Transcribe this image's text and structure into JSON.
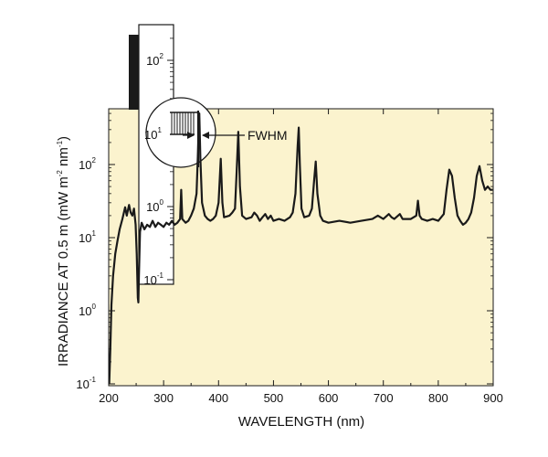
{
  "colors": {
    "plot_background": "#FBF3CE",
    "line": "#1a1a1a",
    "bar": "#1a1a1a"
  },
  "chart_data": {
    "type": "line",
    "xlabel": "WAVELENGTH (nm)",
    "ylabel_main": "IRRADIANCE AT 0.5 m (mW m",
    "ylabel_exp1": "-2",
    "ylabel_mid": " nm",
    "ylabel_exp2": "-1",
    "ylabel_end": ")",
    "xlim": [
      200,
      900
    ],
    "xticks": [
      "200",
      "300",
      "400",
      "500",
      "600",
      "700",
      "800",
      "900"
    ],
    "yscale": "log",
    "ylim": [
      0.1,
      500
    ],
    "yticks": [
      {
        "mant": "10",
        "exp": "-1",
        "value": 0.1
      },
      {
        "mant": "10",
        "exp": "0",
        "value": 1
      },
      {
        "mant": "10",
        "exp": "1",
        "value": 10
      },
      {
        "mant": "10",
        "exp": "2",
        "value": 100
      }
    ],
    "series": [
      {
        "values": [
          [
            201,
            0.1
          ],
          [
            203,
            0.3
          ],
          [
            205,
            1.2
          ],
          [
            208,
            3.0
          ],
          [
            212,
            6.0
          ],
          [
            216,
            9.0
          ],
          [
            220,
            13.0
          ],
          [
            225,
            18.0
          ],
          [
            230,
            26.0
          ],
          [
            233,
            20.0
          ],
          [
            237,
            28.0
          ],
          [
            240,
            22.0
          ],
          [
            243,
            20.0
          ],
          [
            246,
            25.0
          ],
          [
            249,
            15.0
          ],
          [
            251,
            6.0
          ],
          [
            253,
            1.5
          ],
          [
            254,
            1.3
          ],
          [
            255,
            3.0
          ],
          [
            257,
            12.0
          ],
          [
            260,
            16.0
          ],
          [
            265,
            13.0
          ],
          [
            270,
            15.0
          ],
          [
            275,
            14.0
          ],
          [
            280,
            17.0
          ],
          [
            285,
            14.0
          ],
          [
            290,
            16.0
          ],
          [
            295,
            15.0
          ],
          [
            300,
            14.0
          ],
          [
            305,
            16.0
          ],
          [
            310,
            15.0
          ],
          [
            315,
            17.0
          ],
          [
            320,
            15.0
          ],
          [
            325,
            16.0
          ],
          [
            330,
            18.0
          ],
          [
            332,
            45.0
          ],
          [
            334,
            18.0
          ],
          [
            340,
            16.0
          ],
          [
            345,
            17.0
          ],
          [
            350,
            20.0
          ],
          [
            355,
            25.0
          ],
          [
            360,
            40.0
          ],
          [
            363,
            180.0
          ],
          [
            365,
            500.0
          ],
          [
            367,
            120.0
          ],
          [
            370,
            30.0
          ],
          [
            375,
            20.0
          ],
          [
            380,
            18.0
          ],
          [
            385,
            17.0
          ],
          [
            390,
            18.0
          ],
          [
            395,
            20.0
          ],
          [
            400,
            30.0
          ],
          [
            404,
            120.0
          ],
          [
            407,
            30.0
          ],
          [
            410,
            19.0
          ],
          [
            420,
            20.0
          ],
          [
            425,
            22.0
          ],
          [
            430,
            25.0
          ],
          [
            433,
            80.0
          ],
          [
            436,
            280.0
          ],
          [
            439,
            50.0
          ],
          [
            443,
            20.0
          ],
          [
            450,
            18.0
          ],
          [
            460,
            19.0
          ],
          [
            465,
            22.0
          ],
          [
            470,
            20.0
          ],
          [
            475,
            17.0
          ],
          [
            480,
            19.0
          ],
          [
            485,
            21.0
          ],
          [
            490,
            18.0
          ],
          [
            495,
            20.0
          ],
          [
            500,
            17.0
          ],
          [
            510,
            18.0
          ],
          [
            520,
            17.0
          ],
          [
            530,
            19.0
          ],
          [
            535,
            22.0
          ],
          [
            540,
            40.0
          ],
          [
            544,
            180.0
          ],
          [
            546,
            320.0
          ],
          [
            548,
            100.0
          ],
          [
            551,
            25.0
          ],
          [
            556,
            19.0
          ],
          [
            565,
            20.0
          ],
          [
            570,
            25.0
          ],
          [
            574,
            60.0
          ],
          [
            577,
            110.0
          ],
          [
            580,
            40.0
          ],
          [
            585,
            20.0
          ],
          [
            590,
            17.0
          ],
          [
            600,
            16.0
          ],
          [
            620,
            17.0
          ],
          [
            640,
            16.0
          ],
          [
            660,
            17.0
          ],
          [
            680,
            18.0
          ],
          [
            690,
            20.0
          ],
          [
            700,
            18.0
          ],
          [
            710,
            21.0
          ],
          [
            715,
            19.0
          ],
          [
            720,
            18.0
          ],
          [
            730,
            21.0
          ],
          [
            735,
            18.0
          ],
          [
            750,
            18.0
          ],
          [
            760,
            20.0
          ],
          [
            763,
            32.0
          ],
          [
            766,
            20.0
          ],
          [
            770,
            18.0
          ],
          [
            780,
            17.0
          ],
          [
            790,
            18.0
          ],
          [
            800,
            17.0
          ],
          [
            810,
            21.0
          ],
          [
            815,
            45.0
          ],
          [
            820,
            85.0
          ],
          [
            825,
            70.0
          ],
          [
            830,
            35.0
          ],
          [
            835,
            20.0
          ],
          [
            840,
            17.0
          ],
          [
            845,
            15.0
          ],
          [
            850,
            16.0
          ],
          [
            855,
            18.0
          ],
          [
            860,
            22.0
          ],
          [
            865,
            35.0
          ],
          [
            870,
            70.0
          ],
          [
            875,
            95.0
          ],
          [
            880,
            60.0
          ],
          [
            885,
            45.0
          ],
          [
            890,
            50.0
          ],
          [
            895,
            45.0
          ],
          [
            899,
            45.0
          ]
        ]
      }
    ],
    "inset": {
      "yscale": "log",
      "ylim": [
        0.1,
        400
      ],
      "yticks": [
        {
          "mant": "10",
          "exp": "-1",
          "value": 0.1
        },
        {
          "mant": "10",
          "exp": "0",
          "value": 1
        },
        {
          "mant": "10",
          "exp": "1",
          "value": 10
        },
        {
          "mant": "10",
          "exp": "2",
          "value": 100
        }
      ]
    },
    "annotation": "FWHM"
  }
}
